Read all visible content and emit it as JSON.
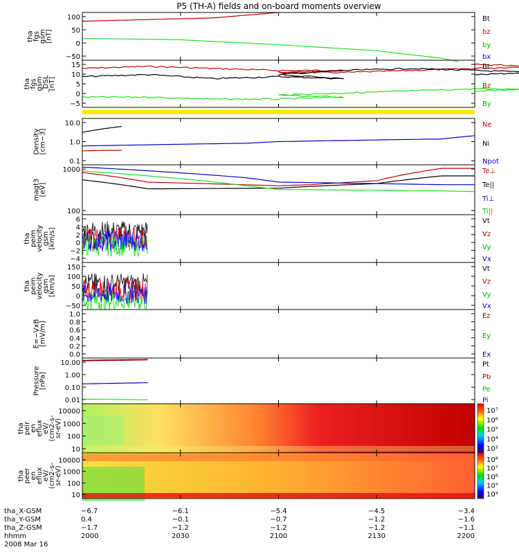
{
  "chart_data": {
    "type": "line",
    "title": "P5 (TH-A) fields and on-board moments overview",
    "panels": [
      {
        "id": "fgs",
        "ylabel": [
          "tha",
          "fgs",
          "gsm",
          "[nT]"
        ],
        "yticks": [
          "100",
          "50",
          "0",
          "−50"
        ],
        "ylim": [
          -75,
          100
        ],
        "scale": "linear",
        "legend": [
          {
            "name": "Bt",
            "color": "#000000"
          },
          {
            "name": "bz",
            "color": "#c00000"
          },
          {
            "name": "by",
            "color": "#00b000"
          },
          {
            "name": "bx",
            "color": "#0000c0"
          }
        ],
        "series": [
          {
            "name": "bz",
            "color": "#c00000",
            "x": [
              2000,
              2040,
              2100
            ],
            "y": [
              68,
              80,
              100
            ]
          },
          {
            "name": "by",
            "color": "#20e020",
            "x": [
              2000,
              2030,
              2100,
              2130,
              2150,
              2155
            ],
            "y": [
              5,
              0,
              -18,
              -40,
              -68,
              -80
            ]
          }
        ]
      },
      {
        "id": "fgs_dsl",
        "ylabel": [
          "tha",
          "fgs",
          "gsm",
          "_DSL",
          "[nT]"
        ],
        "yticks": [
          "15",
          "10",
          "5",
          "0",
          "−5"
        ],
        "ylim": [
          -7,
          16
        ],
        "scale": "linear",
        "legend": [
          {
            "name": "Bt",
            "color": "#000000"
          },
          {
            "name": "Bz",
            "color": "#c00000"
          },
          {
            "name": "By",
            "color": "#00b000"
          }
        ],
        "series": [
          {
            "name": "Bz",
            "color": "#c00000",
            "x": [
              2000,
              2020,
              2040,
              2060,
              2080,
              2100,
              2120,
              2140,
              2160,
              2180,
              2200
            ],
            "y": [
              12,
              13,
              12,
              11,
              11,
              10,
              10,
              11,
              12,
              13,
              14
            ]
          },
          {
            "name": "Bt",
            "color": "#000000",
            "x": [
              2000,
              2020,
              2040,
              2060,
              2080,
              2100,
              2120,
              2140,
              2160,
              2180,
              2200
            ],
            "y": [
              8,
              9,
              7,
              8,
              7,
              9,
              11,
              12,
              11,
              10,
              9
            ]
          },
          {
            "name": "By",
            "color": "#20e020",
            "x": [
              2000,
              2020,
              2040,
              2060,
              2080,
              2100,
              2120,
              2140,
              2160,
              2180,
              2200
            ],
            "y": [
              -2,
              -2,
              -3,
              -3,
              -2,
              -1,
              0,
              1,
              2,
              2,
              1
            ]
          }
        ]
      },
      {
        "id": "density",
        "ylabel": [
          "Density",
          "[cm−3]"
        ],
        "yticks": [
          "10.0",
          "1.0",
          "0.1"
        ],
        "ylim": [
          0.1,
          10
        ],
        "scale": "log",
        "legend": [
          {
            "name": "Ne",
            "color": "#c00000"
          },
          {
            "name": "Ni",
            "color": "#000000"
          },
          {
            "name": "Npot",
            "color": "#0000c0"
          }
        ],
        "series": [
          {
            "name": "Ni",
            "color": "#000000",
            "x": [
              2000,
              2006,
              2012
            ],
            "y": [
              2.5,
              3.5,
              4.5
            ]
          },
          {
            "name": "Ne",
            "color": "#c00000",
            "x": [
              2000,
              2006,
              2012
            ],
            "y": [
              0.4,
              0.42,
              0.42
            ]
          },
          {
            "name": "Npot",
            "color": "#0000c0",
            "x": [
              2000,
              2050,
              2100,
              2150,
              2200
            ],
            "y": [
              0.65,
              0.85,
              1.0,
              1.3,
              1.8
            ]
          }
        ]
      },
      {
        "id": "temperature",
        "ylabel": [
          "magt3",
          "[eV]"
        ],
        "yticks": [
          "1000",
          "100"
        ],
        "ylim": [
          100,
          1000
        ],
        "scale": "log",
        "legend": [
          {
            "name": "Te⊥",
            "color": "#c00000"
          },
          {
            "name": "Te||",
            "color": "#000000"
          },
          {
            "name": "Ti⊥",
            "color": "#0000c0"
          },
          {
            "name": "Ti||",
            "color": "#00b000"
          }
        ],
        "series": [
          {
            "name": "Te⊥",
            "color": "#c00000",
            "x": [
              2000,
              2020,
              2060,
              2110,
              2130,
              2150,
              2200
            ],
            "y": [
              700,
              450,
              380,
              400,
              480,
              850,
              850
            ]
          },
          {
            "name": "Te||",
            "color": "#000000",
            "x": [
              2000,
              2020,
              2060,
              2110,
              2130,
              2150,
              2200
            ],
            "y": [
              500,
              330,
              340,
              370,
              420,
              600,
              600
            ]
          },
          {
            "name": "Ti⊥",
            "color": "#0000c0",
            "x": [
              2000,
              2050,
              2100,
              2150,
              2200
            ],
            "y": [
              900,
              550,
              450,
              400,
              400
            ]
          },
          {
            "name": "Ti||",
            "color": "#20e020",
            "x": [
              2000,
              2050,
              2100,
              2150,
              2200
            ],
            "y": [
              750,
              380,
              320,
              300,
              290
            ]
          }
        ]
      },
      {
        "id": "velocity1",
        "ylabel": [
          "tha",
          "peim",
          "velocity",
          "gsm",
          "[km/s]"
        ],
        "yticks": [
          "6",
          "4",
          "2",
          "0",
          "−2",
          "−4"
        ],
        "ylim": [
          -4,
          6
        ],
        "scale": "linear",
        "legend": [
          {
            "name": "Vt",
            "color": "#000000"
          },
          {
            "name": "Vz",
            "color": "#c00000"
          },
          {
            "name": "Vy",
            "color": "#00b000"
          },
          {
            "name": "Vx",
            "color": "#0000c0"
          }
        ],
        "burst": {
          "x": [
            2000,
            2020
          ],
          "centers": [
            2.5,
            1,
            -0.5,
            0.5
          ]
        }
      },
      {
        "id": "velocity2",
        "ylabel": [
          "tha",
          "peim",
          "velocity",
          "gsm",
          "[km/s]"
        ],
        "yticks": [
          "150",
          "100",
          "50",
          "0",
          "−50"
        ],
        "ylim": [
          -60,
          150
        ],
        "scale": "linear",
        "legend": [
          {
            "name": "Vt",
            "color": "#000000"
          },
          {
            "name": "Vz",
            "color": "#c00000"
          },
          {
            "name": "Vy",
            "color": "#00b000"
          },
          {
            "name": "Vx",
            "color": "#0000c0"
          }
        ],
        "burst": {
          "x": [
            2000,
            2020
          ],
          "centers": [
            55,
            30,
            -20,
            10
          ]
        }
      },
      {
        "id": "efield",
        "ylabel": [
          "E=−VxB",
          "[mV/m]"
        ],
        "yticks": [
          "1.0",
          "0.8",
          "0.6",
          "0.4",
          "0.2",
          "0.0"
        ],
        "ylim": [
          0,
          1
        ],
        "scale": "linear",
        "legend": [
          {
            "name": "Ez",
            "color": "#c00000"
          },
          {
            "name": "Ey",
            "color": "#00b000"
          },
          {
            "name": "Ex",
            "color": "#0000c0"
          }
        ],
        "series": []
      },
      {
        "id": "pressure",
        "ylabel": [
          "Pressure",
          "[nPa]"
        ],
        "yticks": [
          "10.00",
          "1.00",
          "0.10",
          "0.01"
        ],
        "ylim": [
          0.01,
          10
        ],
        "scale": "log",
        "legend": [
          {
            "name": "Pt",
            "color": "#000000"
          },
          {
            "name": "Pb",
            "color": "#c00000"
          },
          {
            "name": "Pe",
            "color": "#00b000"
          },
          {
            "name": "Pi",
            "color": "#0000c0"
          }
        ],
        "series": [
          {
            "name": "Pt",
            "color": "#000000",
            "x": [
              2000,
              2020
            ],
            "y": [
              7,
              8
            ]
          },
          {
            "name": "Pb",
            "color": "#c00000",
            "x": [
              2000,
              2020
            ],
            "y": [
              6.5,
              7.5
            ]
          },
          {
            "name": "Pi",
            "color": "#0000c0",
            "x": [
              2000,
              2020
            ],
            "y": [
              0.2,
              0.24
            ]
          },
          {
            "name": "Pe",
            "color": "#20e020",
            "x": [
              2000,
              2020
            ],
            "y": [
              0.02,
              0.018
            ]
          }
        ]
      },
      {
        "id": "peir",
        "ylabel": [
          "tha",
          "peir",
          "en",
          "eflux",
          "eV/",
          "(cm2-s-",
          "sr-eV)"
        ],
        "yticks": [
          "10000",
          "1000",
          "100",
          "10"
        ],
        "colorbar": [
          "10⁷",
          "10⁶",
          "10⁵",
          "10⁴",
          "10³"
        ],
        "spectrogram": "ion"
      },
      {
        "id": "peer",
        "ylabel": [
          "tha",
          "peer",
          "en",
          "eflux",
          "eV/",
          "(cm2-s-",
          "sr-eV)"
        ],
        "yticks": [
          "10000",
          "1000",
          "100",
          "10"
        ],
        "colorbar": [
          "10⁸",
          "10⁷",
          "10⁶",
          "10⁵",
          "10⁴"
        ],
        "spectrogram": "electron"
      }
    ],
    "xaxis": {
      "ticks": [
        2000,
        2030,
        2100,
        2130,
        2200
      ],
      "rows": [
        {
          "label": "tha_X-GSM",
          "values": [
            "−6.7",
            "−6.1",
            "−5.4",
            "−4.5",
            "−3.4"
          ]
        },
        {
          "label": "tha_Y-GSM",
          "values": [
            "0.4",
            "−0.1",
            "−0.7",
            "−1.2",
            "−1.6"
          ]
        },
        {
          "label": "tha_Z-GSM",
          "values": [
            "−1.7",
            "−1.2",
            "−1.2",
            "−1.2",
            "−1.1"
          ]
        },
        {
          "label": "hhmm",
          "values": [
            "2000",
            "2030",
            "2100",
            "2130",
            "2200"
          ]
        }
      ],
      "date": "2008 Mar 16"
    }
  }
}
